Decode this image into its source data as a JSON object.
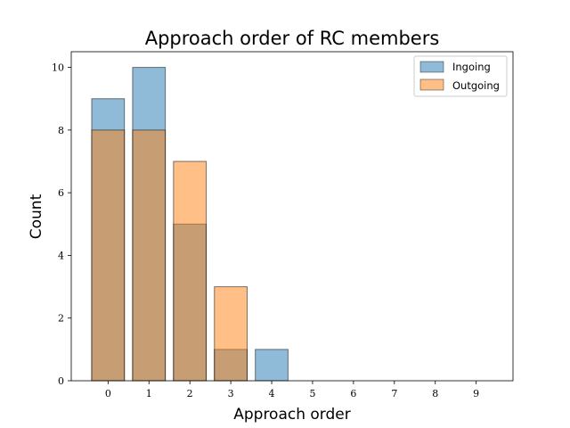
{
  "chart_data": {
    "type": "bar",
    "title": "Approach order of RC members",
    "xlabel": "Approach order",
    "ylabel": "Count",
    "categories": [
      "0",
      "1",
      "2",
      "3",
      "4",
      "5",
      "6",
      "7",
      "8",
      "9"
    ],
    "series": [
      {
        "name": "Ingoing",
        "values": [
          9,
          10,
          5,
          1,
          1,
          0,
          0,
          0,
          0,
          0
        ],
        "color": "#1f77b4"
      },
      {
        "name": "Outgoing",
        "values": [
          8,
          8,
          7,
          3,
          0,
          0,
          0,
          0,
          0,
          0
        ],
        "color": "#ff7f0e"
      }
    ],
    "ylim": [
      0,
      10.5
    ],
    "xlim": [
      -0.9,
      9.9
    ],
    "yticks": [
      0,
      2,
      4,
      6,
      8,
      10
    ],
    "bar_alpha": 0.5,
    "grid": false,
    "legend_position": "top-right"
  }
}
